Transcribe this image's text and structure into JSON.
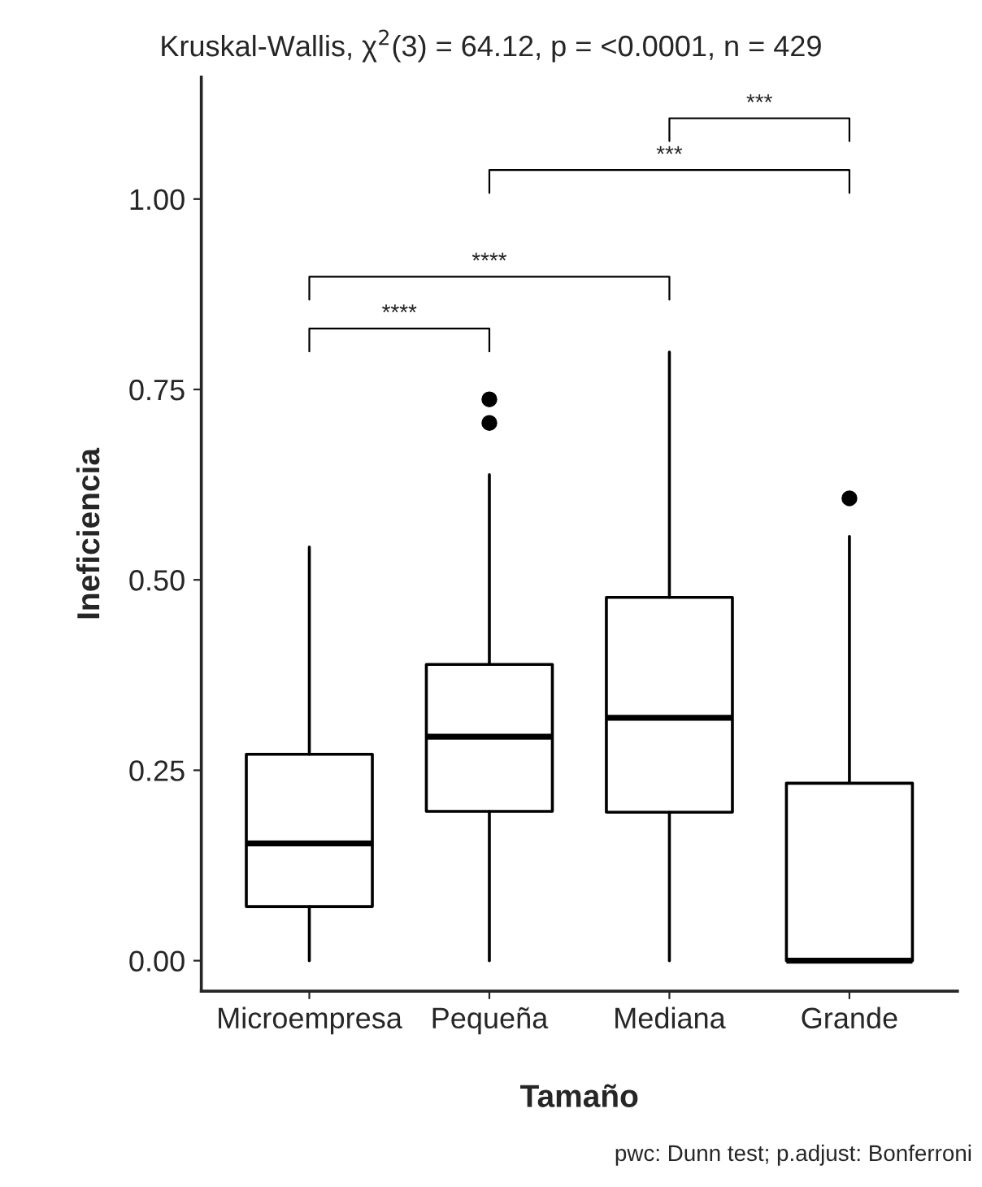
{
  "chart_data": {
    "type": "box",
    "title": "Kruskal-Wallis, χ$^{2}$(3) = 64.12, p = <0.0001, n = 429",
    "xlabel": "Tamaño",
    "ylabel": "Ineficiencia",
    "categories": [
      "Microempresa",
      "Pequeña",
      "Mediana",
      "Grande"
    ],
    "boxes": [
      {
        "low": 0,
        "q1": 0.071,
        "median": 0.154,
        "q3": 0.271,
        "high": 0.543
      },
      {
        "low": 0,
        "q1": 0.196,
        "median": 0.294,
        "q3": 0.389,
        "high": 0.638,
        "outliers": [
          0.706,
          0.737
        ]
      },
      {
        "low": 0,
        "q1": 0.195,
        "median": 0.319,
        "q3": 0.477,
        "high": 0.799
      },
      {
        "low": 0,
        "q1": 0,
        "median": 0,
        "q3": 0.233,
        "high": 0.557,
        "outliers": [
          0.607
        ]
      }
    ],
    "ylim": [
      -0.04,
      1.16
    ],
    "yticks": [
      {
        "value": 0,
        "label": "0.00"
      },
      {
        "value": 0.25,
        "label": "0.25"
      },
      {
        "value": 0.5,
        "label": "0.50"
      },
      {
        "value": 0.75,
        "label": "0.75"
      },
      {
        "value": 1,
        "label": "1.00"
      }
    ],
    "grid": false,
    "annotations": [
      "****",
      "****",
      "***",
      "***",
      "pwc: Dunn test; p.adjust: Bonferroni"
    ]
  }
}
